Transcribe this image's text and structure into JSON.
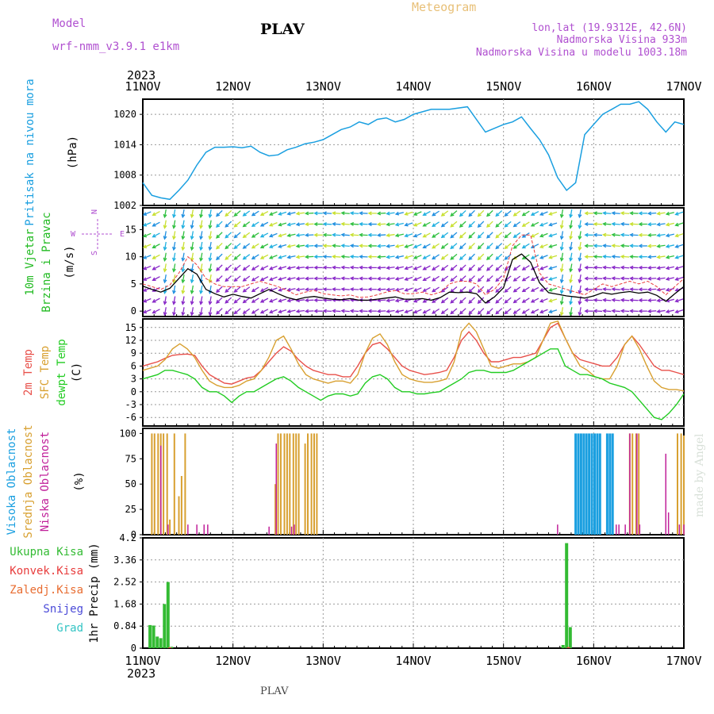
{
  "header": {
    "model_label": "Model",
    "model_name": "wrf-nmm_v3.9.1 e1km",
    "station": "PLAV",
    "meteogram": "Meteogram",
    "coords": "lon,lat (19.9312E, 42.6N)",
    "elevation": "Nadmorska Visina 933m",
    "model_elevation": "Nadmorska Visina u modelu 1003.18m"
  },
  "footer": {
    "station": "PLAV",
    "credit": "made by Angel"
  },
  "colors": {
    "pressure": "#1a9fe0",
    "wind_label": "#22bb22",
    "t2m": "#e8504a",
    "sfc": "#d8a030",
    "dew": "#22cc22",
    "high_cloud": "#1a9fe0",
    "mid_cloud": "#d8a030",
    "low_cloud": "#c0209a",
    "rain_total": "#33bb33",
    "rain_conv": "#e83c3c",
    "rain_frz": "#e86c30",
    "snow": "#4a4ad8",
    "graupel": "#33c4c4",
    "direction_legend": "#b050d0"
  },
  "chart_data": {
    "type": "meteogram",
    "year": "2023",
    "date_ticks": [
      "11NOV",
      "12NOV",
      "13NOV",
      "14NOV",
      "15NOV",
      "16NOV",
      "17NOV"
    ],
    "panels": [
      {
        "id": "pressure",
        "type": "line",
        "labels": [
          "Pritisak na nivou mora"
        ],
        "unit": "(hPa)",
        "ylim": [
          1002,
          1023
        ],
        "yticks": [
          1002,
          1008,
          1014,
          1020
        ],
        "series": [
          {
            "name": "Pritisak na nivou mora",
            "x": [
              0,
              0.1,
              0.2,
              0.3,
              0.4,
              0.5,
              0.6,
              0.7,
              0.8,
              0.9,
              1,
              1.1,
              1.2,
              1.3,
              1.4,
              1.5,
              1.6,
              1.7,
              1.8,
              1.9,
              2,
              2.1,
              2.2,
              2.3,
              2.4,
              2.5,
              2.6,
              2.7,
              2.8,
              2.9,
              3,
              3.2,
              3.4,
              3.6,
              3.8,
              4,
              4.1,
              4.2,
              4.3,
              4.4,
              4.5,
              4.6,
              4.7,
              4.8,
              4.9,
              5,
              5.1,
              5.2,
              5.3,
              5.4,
              5.5,
              5.6,
              5.7,
              5.8,
              5.9,
              6
            ],
            "values": [
              1006.5,
              1004,
              1003.5,
              1003.2,
              1005,
              1007,
              1010,
              1012.5,
              1013.5,
              1013.5,
              1013.6,
              1013.4,
              1013.7,
              1012.5,
              1011.8,
              1012,
              1013,
              1013.5,
              1014.2,
              1014.5,
              1015,
              1016,
              1017,
              1017.5,
              1018.5,
              1018,
              1019,
              1019.3,
              1018.5,
              1019,
              1020,
              1021,
              1021,
              1021.5,
              1016.5,
              1018,
              1018.5,
              1019.5,
              1017.2,
              1015,
              1012,
              1007.5,
              1005,
              1006.5,
              1016,
              1018,
              1020,
              1021,
              1022,
              1022,
              1022.5,
              1021,
              1018.5,
              1016.5,
              1018.5,
              1018
            ]
          }
        ]
      },
      {
        "id": "wind",
        "type": "line",
        "labels": [
          "10m Vjetar",
          "Brzina i Pravac"
        ],
        "unit": "(m/s)",
        "ylim": [
          -1,
          19
        ],
        "yticks": [
          0,
          5,
          10,
          15
        ],
        "direction_legend": {
          "N": "N",
          "E": "E",
          "S": "S",
          "W": "W"
        },
        "series": [
          {
            "name": "speed_mean",
            "values": [
              4.6,
              4,
              3.5,
              4.2,
              6,
              7.8,
              6.8,
              4,
              3.2,
              2.6,
              3.1,
              2.7,
              2.4,
              3.2,
              4,
              3.2,
              2.5,
              2.1,
              2.5,
              2.7,
              2.4,
              2.2,
              2.1,
              2.3,
              2,
              2,
              2.2,
              2.4,
              2.6,
              2.2,
              2.2,
              2.3,
              2,
              2.5,
              3.5,
              3.4,
              3.5,
              3.2,
              1.5,
              2.6,
              4.3,
              9.5,
              10.5,
              9,
              5.2,
              3.4,
              3.1,
              2.8,
              2.6,
              2.4,
              2.8,
              3.4,
              3.1,
              3.4,
              3.6,
              3.3,
              3.5,
              2.9,
              1.8,
              3.2,
              4.5
            ]
          },
          {
            "name": "speed_gust",
            "values": [
              5,
              4.5,
              4,
              4.8,
              7,
              10,
              8.5,
              6,
              5,
              4.5,
              4.5,
              4.5,
              5,
              5.5,
              5,
              4.5,
              3.8,
              3,
              3.5,
              3.8,
              3.2,
              3,
              2.8,
              3,
              2.5,
              2.6,
              3,
              3.5,
              3.8,
              3.2,
              3.2,
              3.5,
              3,
              3.5,
              5,
              5.5,
              5.5,
              5,
              3,
              4,
              6,
              12,
              14,
              14,
              7,
              5,
              4.5,
              4,
              3.5,
              3,
              4,
              5,
              4.5,
              5,
              5.5,
              5,
              5.5,
              4.5,
              3,
              4.5,
              6
            ]
          }
        ],
        "arrows": {
          "mean_color": "#8828c8",
          "gust_colors": [
            "#20b0e0",
            "#2090e0",
            "#c8e030",
            "#30c040"
          ],
          "rows": [
            0,
            2,
            4,
            6,
            8,
            10,
            12,
            14,
            16,
            18
          ]
        }
      },
      {
        "id": "temperature",
        "type": "line",
        "labels": [
          "2m Temp",
          "SFC Temp",
          "dewpt Temp"
        ],
        "unit": "(C)",
        "ylim": [
          -8,
          17
        ],
        "yticks": [
          -6,
          -3,
          0,
          3,
          6,
          9,
          12,
          15
        ],
        "series": [
          {
            "name": "2m Temp",
            "values": [
              6,
              6.5,
              7,
              7.8,
              8.5,
              8.7,
              8.8,
              8.5,
              6,
              4,
              3,
              2,
              1.8,
              2.5,
              3.2,
              3.5,
              5,
              7,
              9,
              10.5,
              9.5,
              7.5,
              6,
              5,
              4.5,
              4,
              4,
              3.5,
              3.5,
              6,
              9,
              11,
              11.5,
              10,
              8,
              6,
              5,
              4.5,
              4,
              4.2,
              4.5,
              5,
              8,
              12,
              14,
              12,
              9,
              7,
              7,
              7.5,
              8,
              8,
              8.5,
              9,
              12,
              15,
              16,
              12.5,
              9,
              7.5,
              7,
              6.5,
              6,
              6,
              8,
              11,
              13,
              11,
              8.5,
              6,
              5,
              5,
              4.5,
              4
            ]
          },
          {
            "name": "SFC Temp",
            "values": [
              5,
              5.5,
              6,
              7.5,
              10,
              11.2,
              10,
              8,
              5,
              2.5,
              1.5,
              1,
              1,
              1.5,
              2.5,
              3,
              5,
              8,
              12,
              13,
              10,
              6.5,
              4,
              3,
              2.5,
              2,
              2.5,
              2.5,
              2,
              4,
              9,
              12.5,
              13.5,
              11,
              7,
              4,
              3,
              2.5,
              2.2,
              2.2,
              2.5,
              3,
              7,
              14,
              16,
              14,
              10,
              6,
              5.5,
              6,
              6.5,
              6.5,
              7,
              8,
              12,
              16,
              16.5,
              12.5,
              9,
              6,
              5,
              3.5,
              3,
              3,
              6,
              11,
              13,
              10,
              6,
              2.5,
              1,
              0.5,
              0.5,
              0.2
            ]
          },
          {
            "name": "dewpt Temp",
            "values": [
              3,
              3.5,
              4,
              5,
              5,
              4.5,
              4,
              3,
              1,
              0,
              0,
              -1,
              -2.5,
              -1,
              0,
              0,
              1,
              2,
              3,
              3.5,
              2.5,
              1,
              0,
              -1,
              -2,
              -1,
              -0.5,
              -0.5,
              -1,
              -0.5,
              2,
              3.5,
              4,
              3,
              1,
              0,
              0,
              -0.5,
              -0.5,
              -0.2,
              0,
              1,
              2,
              3,
              4.5,
              5,
              5,
              4.5,
              4.5,
              4.5,
              5,
              6,
              7,
              8,
              9,
              10,
              10,
              6,
              5,
              4,
              4,
              3.5,
              3,
              2,
              1.5,
              1,
              0,
              -2,
              -4,
              -6,
              -6.5,
              -5,
              -3,
              -0.5
            ]
          }
        ]
      },
      {
        "id": "cloud",
        "type": "bar",
        "labels": [
          "Visoka Oblacnost",
          "Srednja Oblacnost",
          "Niska Oblacnost"
        ],
        "unit": "(%)",
        "ylim": [
          0,
          105
        ],
        "yticks": [
          0,
          25,
          50,
          75,
          100
        ],
        "series": [
          {
            "name": "Visoka Oblacnost",
            "x": [
              4.8,
              4.83,
              4.86,
              4.89,
              4.92,
              4.95,
              4.98,
              5.01,
              5.04,
              5.07,
              5.15,
              5.18,
              5.21
            ],
            "values": [
              100,
              100,
              100,
              100,
              100,
              100,
              100,
              100,
              100,
              100,
              100,
              100,
              100
            ]
          },
          {
            "name": "Srednja Oblacnost",
            "x": [
              0.1,
              0.13,
              0.17,
              0.2,
              0.23,
              0.27,
              0.3,
              0.35,
              0.4,
              0.43,
              0.47,
              1.47,
              1.5,
              1.53,
              1.57,
              1.6,
              1.63,
              1.67,
              1.7,
              1.73,
              1.8,
              1.83,
              1.87,
              1.9,
              1.93,
              5.4,
              5.43,
              5.47,
              5.5,
              5.93,
              5.97,
              6
            ],
            "values": [
              100,
              100,
              100,
              100,
              100,
              100,
              15,
              100,
              38,
              58,
              100,
              50,
              100,
              100,
              100,
              100,
              100,
              100,
              100,
              100,
              90,
              100,
              100,
              100,
              100,
              100,
              100,
              100,
              100,
              100,
              100,
              98
            ]
          },
          {
            "name": "Niska Oblacnost",
            "x": [
              0.2,
              0.28,
              0.5,
              0.6,
              0.68,
              0.72,
              1.4,
              1.48,
              1.65,
              1.68,
              4.6,
              5.25,
              5.28,
              5.35,
              5.4,
              5.48,
              5.51,
              5.8,
              5.83,
              5.95,
              6
            ],
            "values": [
              88,
              10,
              10,
              10,
              10,
              10,
              8,
              90,
              8,
              10,
              10,
              10,
              10,
              10,
              100,
              100,
              10,
              80,
              22,
              10,
              10
            ]
          }
        ]
      },
      {
        "id": "precip",
        "type": "bar",
        "labels": [
          "Ukupna Kisa",
          "Konvek.Kisa",
          "Zaledj.Kisa",
          "Snijeg",
          "Grad"
        ],
        "unit": "1hr Precip (mm)",
        "ylim": [
          0,
          4.2
        ],
        "yticks": [
          0,
          0.84,
          1.68,
          2.52,
          3.36,
          4.2
        ],
        "series": [
          {
            "name": "Ukupna Kisa",
            "x": [
              0.08,
              0.12,
              0.16,
              0.2,
              0.24,
              0.28,
              0.32,
              4.66,
              4.7,
              4.74
            ],
            "values": [
              0.88,
              0.86,
              0.44,
              0.38,
              1.68,
              2.52,
              0.05,
              0.12,
              4.0,
              0.8
            ]
          },
          {
            "name": "Konvek.Kisa",
            "x": [
              0.3,
              4.72
            ],
            "values": [
              0.03,
              0.04
            ]
          },
          {
            "name": "Zaledj.Kisa",
            "x": [],
            "values": []
          },
          {
            "name": "Snijeg",
            "x": [],
            "values": []
          },
          {
            "name": "Grad",
            "x": [],
            "values": []
          }
        ]
      }
    ]
  }
}
